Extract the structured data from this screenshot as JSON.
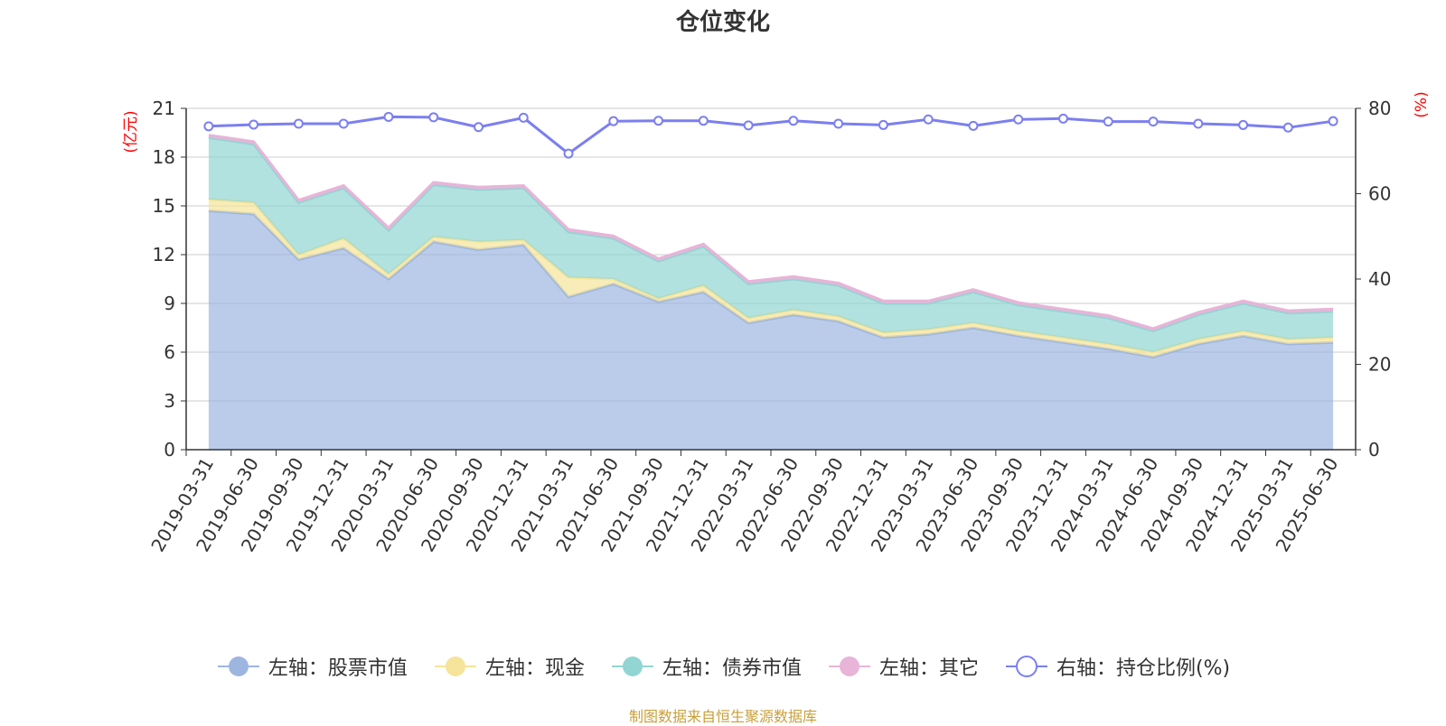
{
  "title": "仓位变化",
  "source": "制图数据来自恒生聚源数据库",
  "chart_data": {
    "type": "area",
    "y_left_unit": "(亿元)",
    "y_right_unit": "(%)",
    "y_left_ticks": [
      "0",
      "3",
      "6",
      "9",
      "12",
      "15",
      "18",
      "21"
    ],
    "y_right_ticks": [
      "0",
      "20",
      "40",
      "60",
      "80"
    ],
    "ylim_left": [
      0,
      21
    ],
    "ylim_right": [
      0,
      80
    ],
    "categories": [
      "2019-03-31",
      "2019-06-30",
      "2019-09-30",
      "2019-12-31",
      "2020-03-31",
      "2020-06-30",
      "2020-09-30",
      "2020-12-31",
      "2021-03-31",
      "2021-06-30",
      "2021-09-30",
      "2021-12-31",
      "2022-03-31",
      "2022-06-30",
      "2022-09-30",
      "2022-12-31",
      "2023-03-31",
      "2023-06-30",
      "2023-09-30",
      "2023-12-31",
      "2024-03-31",
      "2024-06-30",
      "2024-09-30",
      "2024-12-31",
      "2025-03-31",
      "2025-06-30"
    ],
    "grid": true,
    "legend_position": "bottom",
    "series": [
      {
        "name": "左轴：股票市值",
        "axis": "left",
        "color": "#9db6e0",
        "values": [
          14.7,
          14.5,
          11.7,
          12.4,
          10.5,
          12.8,
          12.3,
          12.6,
          9.4,
          10.2,
          9.1,
          9.7,
          7.8,
          8.3,
          7.9,
          6.9,
          7.1,
          7.5,
          7.0,
          6.6,
          6.2,
          5.7,
          6.5,
          7.0,
          6.5,
          6.6
        ]
      },
      {
        "name": "左轴：现金",
        "axis": "left",
        "color": "#f5e49a",
        "values": [
          0.7,
          0.7,
          0.3,
          0.6,
          0.3,
          0.3,
          0.5,
          0.3,
          1.2,
          0.3,
          0.2,
          0.4,
          0.3,
          0.3,
          0.3,
          0.3,
          0.3,
          0.3,
          0.3,
          0.3,
          0.3,
          0.3,
          0.3,
          0.3,
          0.3,
          0.3
        ]
      },
      {
        "name": "左轴：债券市值",
        "axis": "left",
        "color": "#92d5d3",
        "values": [
          3.8,
          3.6,
          3.2,
          3.1,
          2.7,
          3.2,
          3.2,
          3.2,
          2.8,
          2.5,
          2.3,
          2.4,
          2.1,
          1.9,
          1.9,
          1.8,
          1.6,
          1.9,
          1.6,
          1.6,
          1.6,
          1.3,
          1.5,
          1.7,
          1.6,
          1.6
        ]
      },
      {
        "name": "左轴：其它",
        "axis": "left",
        "color": "#e8b4d8",
        "values": [
          0.15,
          0.15,
          0.15,
          0.15,
          0.15,
          0.15,
          0.15,
          0.15,
          0.15,
          0.15,
          0.15,
          0.15,
          0.15,
          0.15,
          0.15,
          0.15,
          0.15,
          0.15,
          0.15,
          0.15,
          0.15,
          0.15,
          0.15,
          0.15,
          0.15,
          0.15
        ]
      },
      {
        "name": "右轴：持仓比例(%)",
        "axis": "right",
        "color": "#7b7ff0",
        "values": [
          75.8,
          76.2,
          76.4,
          76.4,
          78.0,
          77.9,
          75.6,
          77.8,
          69.4,
          77.0,
          77.1,
          77.1,
          76.0,
          77.1,
          76.4,
          76.1,
          77.4,
          75.9,
          77.4,
          77.6,
          76.9,
          76.9,
          76.4,
          76.1,
          75.5,
          77.0
        ]
      }
    ]
  }
}
